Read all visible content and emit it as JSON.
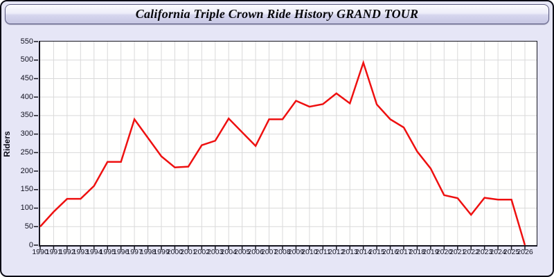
{
  "window": {
    "title": "California Triple Crown Ride History GRAND TOUR"
  },
  "chart_data": {
    "type": "line",
    "title": "California Triple Crown Ride History GRAND TOUR",
    "ylabel": "Riders",
    "xlabel": "",
    "x": [
      1990,
      1991,
      1992,
      1993,
      1994,
      1995,
      1996,
      1997,
      1998,
      1999,
      2000,
      2001,
      2002,
      2003,
      2004,
      2005,
      2006,
      2007,
      2008,
      2009,
      2010,
      2011,
      2012,
      2013,
      2014,
      2015,
      2016,
      2017,
      2018,
      2019,
      2020,
      2021,
      2022,
      2023,
      2024,
      2025,
      2026
    ],
    "series": [
      {
        "name": "Riders",
        "values": [
          50,
          90,
          125,
          125,
          160,
          225,
          225,
          340,
          290,
          240,
          210,
          212,
          270,
          282,
          342,
          305,
          268,
          340,
          340,
          390,
          374,
          381,
          410,
          383,
          493,
          380,
          340,
          318,
          253,
          207,
          135,
          127,
          82,
          128,
          123,
          123,
          0
        ]
      }
    ],
    "ylim": [
      0,
      550
    ],
    "ytick_step": 50,
    "grid": true,
    "legend": "none",
    "line_color": "#ee1010",
    "grid_color": "#d9d9d9",
    "axis_color": "#15151f",
    "tick_label_color": "#10101e",
    "window_background": "#e6e6f6",
    "plot_background": "#fffffe"
  }
}
